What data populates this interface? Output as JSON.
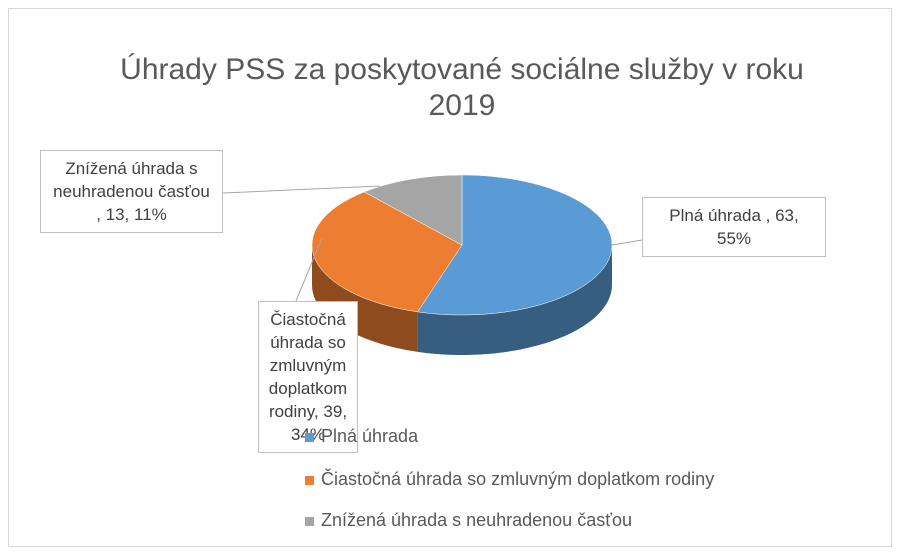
{
  "chart_data": {
    "type": "pie3d",
    "title": "Úhrady PSS za poskytované sociálne služby v roku 2019",
    "categories": [
      "Plná úhrada",
      "Čiastočná úhrada so zmluvným doplatkom rodiny",
      "Znížená úhrada s neuhradenou časťou"
    ],
    "values": [
      63,
      39,
      13
    ],
    "value_labels": [
      "Plná úhrada , 63, 55%",
      "Čiastočná úhrada so zmluvným doplatkom rodiny, 39, 34%",
      "Znížená úhrada s neuhradenou časťou , 13, 11%"
    ],
    "colors": [
      "#5b9bd5",
      "#ed7d31",
      "#a5a5a5"
    ],
    "legend": "bottom-right"
  }
}
